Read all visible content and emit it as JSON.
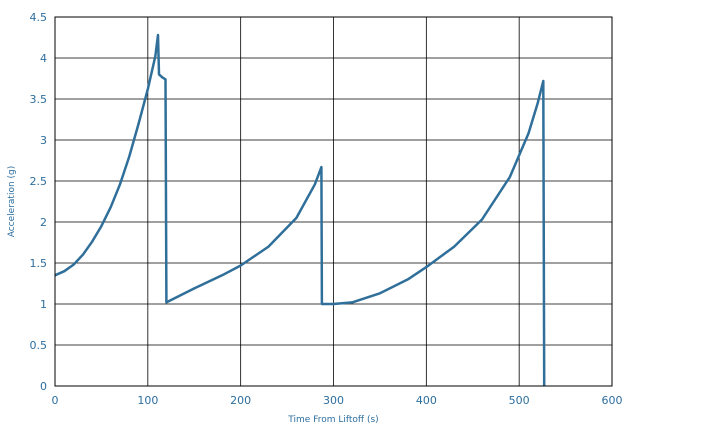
{
  "chart_data": {
    "type": "line",
    "xlabel": "Time From Liftoff (s)",
    "ylabel": "Acceleration (g)",
    "xlim": [
      0,
      600
    ],
    "ylim": [
      0,
      4.5
    ],
    "xticks": [
      0,
      100,
      200,
      300,
      400,
      500,
      600
    ],
    "yticks": [
      0,
      0.5,
      1,
      1.5,
      2,
      2.5,
      3,
      3.5,
      4,
      4.5
    ],
    "grid": true,
    "series": [
      {
        "color": "#2f6f9a",
        "points": [
          [
            0,
            1.35
          ],
          [
            10,
            1.4
          ],
          [
            20,
            1.48
          ],
          [
            30,
            1.6
          ],
          [
            40,
            1.76
          ],
          [
            50,
            1.95
          ],
          [
            60,
            2.18
          ],
          [
            70,
            2.46
          ],
          [
            80,
            2.8
          ],
          [
            90,
            3.2
          ],
          [
            100,
            3.62
          ],
          [
            108,
            4.02
          ],
          [
            111,
            4.28
          ],
          [
            112,
            3.8
          ],
          [
            116,
            3.76
          ],
          [
            119,
            3.74
          ],
          [
            120,
            1.02
          ],
          [
            150,
            1.19
          ],
          [
            180,
            1.35
          ],
          [
            200,
            1.47
          ],
          [
            230,
            1.7
          ],
          [
            260,
            2.05
          ],
          [
            280,
            2.46
          ],
          [
            287,
            2.67
          ],
          [
            287.5,
            1.0
          ],
          [
            300,
            1.0
          ],
          [
            320,
            1.02
          ],
          [
            350,
            1.13
          ],
          [
            380,
            1.3
          ],
          [
            400,
            1.45
          ],
          [
            430,
            1.7
          ],
          [
            460,
            2.03
          ],
          [
            490,
            2.55
          ],
          [
            510,
            3.08
          ],
          [
            520,
            3.45
          ],
          [
            526,
            3.72
          ],
          [
            527,
            0.0
          ]
        ]
      }
    ]
  }
}
